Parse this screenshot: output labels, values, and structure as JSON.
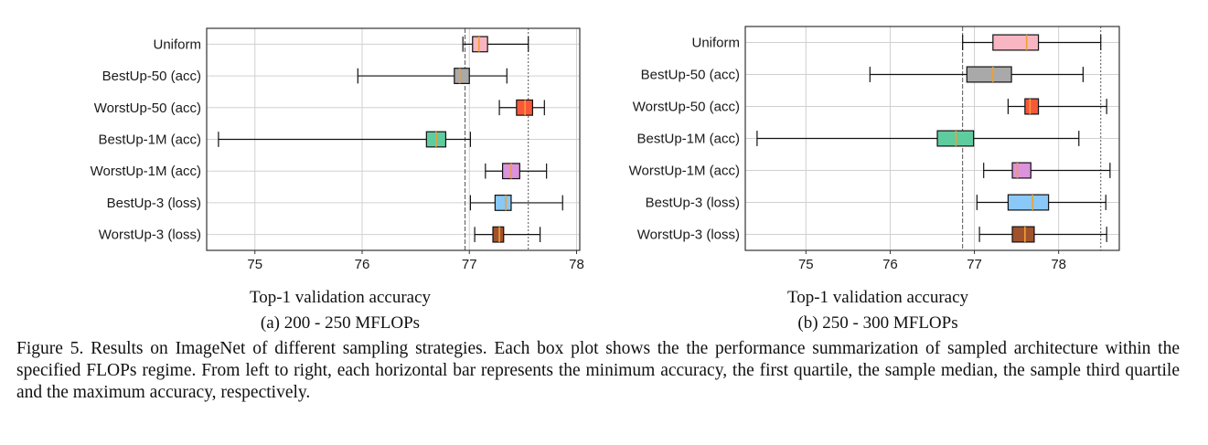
{
  "chart_data": [
    {
      "type": "boxplot",
      "orientation": "horizontal",
      "xlabel": "Top-1 validation accuracy",
      "subcaption": "(a) 200 - 250 MFLOPs",
      "xlim": [
        74.55,
        78.03
      ],
      "xticks": [
        75,
        76,
        77,
        78
      ],
      "grid": true,
      "reference_lines": [
        76.96,
        77.55
      ],
      "series": [
        {
          "name": "Uniform",
          "color": "#f7b6c2",
          "min": 76.94,
          "q1": 77.03,
          "median": 77.09,
          "q3": 77.17,
          "max": 77.55
        },
        {
          "name": "BestUp-50 (acc)",
          "color": "#a9a9a9",
          "min": 75.96,
          "q1": 76.86,
          "median": 76.91,
          "q3": 77.0,
          "max": 77.35
        },
        {
          "name": "WorstUp-50 (acc)",
          "color": "#f9573b",
          "min": 77.28,
          "q1": 77.44,
          "median": 77.52,
          "q3": 77.59,
          "max": 77.7
        },
        {
          "name": "BestUp-1M (acc)",
          "color": "#5fcca0",
          "min": 74.66,
          "q1": 76.6,
          "median": 76.69,
          "q3": 76.78,
          "max": 77.01
        },
        {
          "name": "WorstUp-1M (acc)",
          "color": "#dc92dc",
          "min": 77.15,
          "q1": 77.31,
          "median": 77.39,
          "q3": 77.47,
          "max": 77.72
        },
        {
          "name": "BestUp-3 (loss)",
          "color": "#89c8f7",
          "min": 77.01,
          "q1": 77.24,
          "median": 77.34,
          "q3": 77.39,
          "max": 77.87
        },
        {
          "name": "WorstUp-3 (loss)",
          "color": "#a0522d",
          "min": 77.05,
          "q1": 77.22,
          "median": 77.28,
          "q3": 77.32,
          "max": 77.66
        }
      ]
    },
    {
      "type": "boxplot",
      "orientation": "horizontal",
      "xlabel": "Top-1 validation accuracy",
      "subcaption": "(b) 250 - 300 MFLOPs",
      "xlim": [
        74.28,
        78.72
      ],
      "xticks": [
        75,
        76,
        77,
        78
      ],
      "grid": true,
      "reference_lines": [
        76.86,
        78.5
      ],
      "series": [
        {
          "name": "Uniform",
          "color": "#f7b6c2",
          "min": 76.86,
          "q1": 77.22,
          "median": 77.62,
          "q3": 77.76,
          "max": 78.5
        },
        {
          "name": "BestUp-50 (acc)",
          "color": "#a9a9a9",
          "min": 75.76,
          "q1": 76.91,
          "median": 77.22,
          "q3": 77.44,
          "max": 78.29
        },
        {
          "name": "WorstUp-50 (acc)",
          "color": "#f9573b",
          "min": 77.4,
          "q1": 77.6,
          "median": 77.66,
          "q3": 77.76,
          "max": 78.57
        },
        {
          "name": "BestUp-1M (acc)",
          "color": "#5fcca0",
          "min": 74.42,
          "q1": 76.56,
          "median": 76.78,
          "q3": 76.99,
          "max": 78.24
        },
        {
          "name": "WorstUp-1M (acc)",
          "color": "#dc92dc",
          "min": 77.11,
          "q1": 77.45,
          "median": 77.51,
          "q3": 77.67,
          "max": 78.61
        },
        {
          "name": "BestUp-3 (loss)",
          "color": "#89c8f7",
          "min": 77.03,
          "q1": 77.4,
          "median": 77.69,
          "q3": 77.88,
          "max": 78.56
        },
        {
          "name": "WorstUp-3 (loss)",
          "color": "#a0522d",
          "min": 77.06,
          "q1": 77.45,
          "median": 77.6,
          "q3": 77.71,
          "max": 78.57
        }
      ]
    }
  ],
  "style": {
    "median_color": "#f0a030",
    "whisker_color": "#111111",
    "refline_color": "#555555"
  },
  "caption": "Figure 5. Results on ImageNet of different sampling strategies.  Each box plot shows the the performance summarization of sampled architecture within the specified FLOPs regime. From left to right, each horizontal bar represents the minimum accuracy, the first quartile, the sample median, the sample third quartile and the maximum accuracy, respectively."
}
